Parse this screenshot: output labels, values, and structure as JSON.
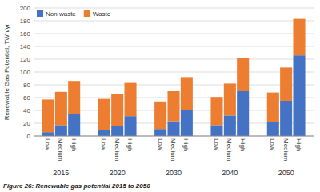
{
  "chart_data": {
    "type": "bar",
    "stacked": true,
    "ylabel": "Renewable Gas Potential, TWh/yr",
    "caption": "Figure 26: Renewable gas potential 2015 to 2050",
    "groups": [
      "2015",
      "2020",
      "2030",
      "2040",
      "2050"
    ],
    "categories": [
      "Low",
      "Medium",
      "High",
      "Low",
      "Medium",
      "High",
      "Low",
      "Medium",
      "High",
      "Low",
      "Medium",
      "High",
      "Low",
      "Medium",
      "High"
    ],
    "series": [
      {
        "name": "Non waste",
        "color": "#4472c4",
        "values": [
          6,
          17,
          35,
          9,
          16,
          31,
          11,
          23,
          41,
          17,
          32,
          70,
          22,
          55,
          126
        ]
      },
      {
        "name": "Waste",
        "color": "#ed7d31",
        "values": [
          51,
          52,
          51,
          49,
          50,
          52,
          43,
          47,
          51,
          44,
          50,
          52,
          46,
          52,
          57
        ]
      }
    ],
    "ylim": [
      0,
      200
    ],
    "yticks": [
      0,
      20,
      40,
      60,
      80,
      100,
      120,
      140,
      160,
      180,
      200
    ],
    "grid": true,
    "legend": "upper left"
  }
}
